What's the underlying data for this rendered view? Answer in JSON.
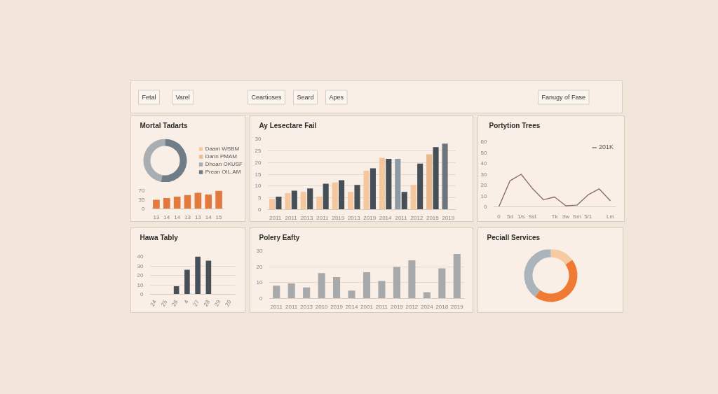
{
  "chart_data": [
    {
      "type": "other",
      "annotations": [
        "Fetal",
        "Varel",
        "Ceartioses",
        "Seard",
        "Apes",
        "Fanugy of Fase"
      ]
    },
    {
      "type": "donut",
      "title": "Mortal Tadarts",
      "categories": [
        "Daam WSBM",
        "Dann PMAM",
        "Dhoan OKUSF",
        "Prean OIL.AM"
      ],
      "values": [
        0,
        0,
        47,
        53
      ],
      "colors": [
        "#f3caa4",
        "#eeb98d",
        "#a9aeb2",
        "#6f7d88"
      ],
      "legend": "right"
    },
    {
      "type": "bar",
      "categories": [
        "13",
        "14",
        "14",
        "13",
        "13",
        "14",
        "15"
      ],
      "values": [
        35,
        42,
        47,
        53,
        62,
        55,
        70
      ],
      "color": "#e27a3f",
      "ylim": [
        0,
        70
      ],
      "yticks": [
        0,
        35,
        70
      ]
    },
    {
      "type": "bar",
      "title": "Ay Lesectare Fail",
      "categories": [
        "2011",
        "2011",
        "2013",
        "2011",
        "2019",
        "2013",
        "2019",
        "2014",
        "2011",
        "2012",
        "2015",
        "2019"
      ],
      "series": [
        {
          "colors": [
            "#f4c79e",
            "#f4c79e",
            "#f4c79e",
            "#f4c79e",
            "#f4c79e",
            "#f4c79e",
            "#f4c79e",
            "#f4c79e",
            "#8e9aa3",
            "#f4c79e",
            "#e8b98e",
            "#6c757c"
          ],
          "values": [
            4.5,
            7,
            7.5,
            5.5,
            11.5,
            7.5,
            16.5,
            22,
            21.5,
            10.5,
            23.5,
            28
          ]
        },
        {
          "color": "#464e56",
          "values": [
            5.5,
            8,
            9,
            11,
            12.5,
            10.5,
            17.5,
            21.5,
            7.5,
            19.5,
            26.5,
            null
          ]
        }
      ],
      "ylim": [
        0,
        30
      ],
      "yticks": [
        0,
        5,
        10,
        15,
        20,
        25,
        30
      ],
      "grid": "y"
    },
    {
      "type": "line",
      "title": "Portytion Trees",
      "categories": [
        "0",
        "5d",
        "1/s",
        "Sst",
        null,
        "Tk",
        "3w",
        "Sm",
        "5/1",
        null,
        "Lm"
      ],
      "series": [
        {
          "name": "201K",
          "color": "#8d6e63",
          "values": [
            0,
            24,
            30,
            17,
            6.5,
            9,
            1,
            1.5,
            11,
            16.5,
            5.5
          ]
        }
      ],
      "ylim": [
        0,
        60
      ],
      "yticks": [
        0,
        10,
        20,
        30,
        40,
        50,
        60
      ],
      "legend": "top right"
    },
    {
      "type": "bar",
      "title": "Hawa Tably",
      "categories": [
        "24",
        "25",
        "26",
        "4",
        "27",
        "28",
        "29",
        "20"
      ],
      "values": [
        null,
        null,
        8.5,
        26,
        40,
        35.5,
        null,
        null
      ],
      "color": "#474f57",
      "ylim": [
        0,
        40
      ],
      "yticks": [
        0,
        10,
        20,
        30,
        40
      ],
      "grid": "y"
    },
    {
      "type": "bar",
      "title": "Polery Eafty",
      "categories": [
        "2011",
        "2011",
        "2013",
        "2010",
        "2019",
        "2014",
        "2001",
        "2011",
        "2019",
        "2012",
        "2024",
        "2018",
        "2019"
      ],
      "values": [
        8,
        9.5,
        7,
        16,
        13.5,
        5,
        16.5,
        11,
        20,
        24,
        4,
        19,
        28
      ],
      "color": "#a7a9ab",
      "ylim": [
        0,
        30
      ],
      "yticks": [
        0,
        10,
        20,
        30
      ],
      "grid": "y"
    },
    {
      "type": "donut",
      "title": "Peciall Services",
      "categories": [
        null,
        null,
        null
      ],
      "values": [
        15,
        45,
        40
      ],
      "colors": [
        "#f6caa3",
        "#f07a33",
        "#aab4ba"
      ]
    }
  ]
}
